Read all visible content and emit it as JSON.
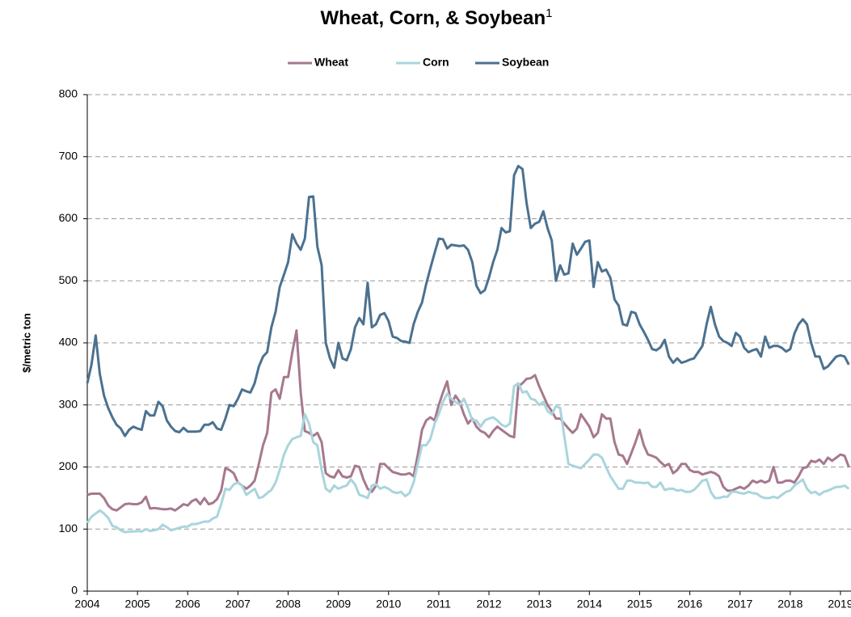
{
  "chart_data": {
    "type": "line",
    "title": "Wheat, Corn, & Soybean",
    "title_superscript": "1",
    "y_label": "$/metric ton",
    "xlim": [
      2004,
      2019.21
    ],
    "xticks": [
      2004,
      2005,
      2006,
      2007,
      2008,
      2009,
      2010,
      2011,
      2012,
      2013,
      2014,
      2015,
      2016,
      2017,
      2018,
      2019
    ],
    "ylim": [
      0,
      800
    ],
    "yticks": [
      0,
      100,
      200,
      300,
      400,
      500,
      600,
      700,
      800
    ],
    "grid": true,
    "legend": "top",
    "x": [
      2004,
      2004.083,
      2004.167,
      2004.25,
      2004.333,
      2004.417,
      2004.5,
      2004.583,
      2004.667,
      2004.75,
      2004.833,
      2004.917,
      2005,
      2005.083,
      2005.167,
      2005.25,
      2005.333,
      2005.417,
      2005.5,
      2005.583,
      2005.667,
      2005.75,
      2005.833,
      2005.917,
      2006,
      2006.083,
      2006.167,
      2006.25,
      2006.333,
      2006.417,
      2006.5,
      2006.583,
      2006.667,
      2006.75,
      2006.833,
      2006.917,
      2007,
      2007.083,
      2007.167,
      2007.25,
      2007.333,
      2007.417,
      2007.5,
      2007.583,
      2007.667,
      2007.75,
      2007.833,
      2007.917,
      2008,
      2008.083,
      2008.167,
      2008.25,
      2008.333,
      2008.417,
      2008.5,
      2008.583,
      2008.667,
      2008.75,
      2008.833,
      2008.917,
      2009,
      2009.083,
      2009.167,
      2009.25,
      2009.333,
      2009.417,
      2009.5,
      2009.583,
      2009.667,
      2009.75,
      2009.833,
      2009.917,
      2010,
      2010.083,
      2010.167,
      2010.25,
      2010.333,
      2010.417,
      2010.5,
      2010.583,
      2010.667,
      2010.75,
      2010.833,
      2010.917,
      2011,
      2011.083,
      2011.167,
      2011.25,
      2011.333,
      2011.417,
      2011.5,
      2011.583,
      2011.667,
      2011.75,
      2011.833,
      2011.917,
      2012,
      2012.083,
      2012.167,
      2012.25,
      2012.333,
      2012.417,
      2012.5,
      2012.583,
      2012.667,
      2012.75,
      2012.833,
      2012.917,
      2013,
      2013.083,
      2013.167,
      2013.25,
      2013.333,
      2013.417,
      2013.5,
      2013.583,
      2013.667,
      2013.75,
      2013.833,
      2013.917,
      2014,
      2014.083,
      2014.167,
      2014.25,
      2014.333,
      2014.417,
      2014.5,
      2014.583,
      2014.667,
      2014.75,
      2014.833,
      2014.917,
      2015,
      2015.083,
      2015.167,
      2015.25,
      2015.333,
      2015.417,
      2015.5,
      2015.583,
      2015.667,
      2015.75,
      2015.833,
      2015.917,
      2016,
      2016.083,
      2016.167,
      2016.25,
      2016.333,
      2016.417,
      2016.5,
      2016.583,
      2016.667,
      2016.75,
      2016.833,
      2016.917,
      2017,
      2017.083,
      2017.167,
      2017.25,
      2017.333,
      2017.417,
      2017.5,
      2017.583,
      2017.667,
      2017.75,
      2017.833,
      2017.917,
      2018,
      2018.083,
      2018.167,
      2018.25,
      2018.333,
      2018.417,
      2018.5,
      2018.583,
      2018.667,
      2018.75,
      2018.833,
      2018.917,
      2019,
      2019.083,
      2019.167
    ],
    "series": [
      {
        "name": "Wheat",
        "color": "#a6788e",
        "values": [
          155,
          157,
          157,
          157,
          150,
          138,
          132,
          130,
          135,
          140,
          141,
          140,
          140,
          143,
          152,
          133,
          134,
          133,
          132,
          132,
          133,
          130,
          135,
          140,
          138,
          145,
          148,
          140,
          150,
          140,
          142,
          148,
          162,
          198,
          195,
          190,
          175,
          170,
          165,
          170,
          178,
          205,
          235,
          255,
          320,
          325,
          310,
          345,
          345,
          385,
          420,
          320,
          258,
          255,
          250,
          255,
          240,
          190,
          185,
          183,
          195,
          185,
          183,
          185,
          202,
          200,
          180,
          165,
          160,
          170,
          205,
          205,
          198,
          192,
          190,
          188,
          188,
          190,
          185,
          220,
          260,
          275,
          280,
          275,
          300,
          320,
          338,
          300,
          315,
          305,
          285,
          270,
          278,
          265,
          258,
          255,
          248,
          258,
          265,
          260,
          255,
          250,
          248,
          330,
          335,
          342,
          343,
          348,
          330,
          315,
          300,
          290,
          278,
          278,
          270,
          262,
          255,
          262,
          285,
          275,
          265,
          248,
          255,
          285,
          278,
          278,
          240,
          220,
          218,
          205,
          222,
          240,
          260,
          235,
          220,
          218,
          215,
          208,
          202,
          205,
          190,
          195,
          205,
          205,
          195,
          192,
          192,
          188,
          190,
          192,
          190,
          185,
          168,
          162,
          162,
          165,
          168,
          165,
          170,
          178,
          175,
          178,
          175,
          178,
          200,
          175,
          175,
          178,
          178,
          175,
          185,
          198,
          200,
          210,
          208,
          212,
          205,
          215,
          210,
          215,
          220,
          218,
          200
        ]
      },
      {
        "name": "Corn",
        "color": "#a9d5dc",
        "values": [
          110,
          120,
          125,
          130,
          125,
          118,
          105,
          103,
          98,
          95,
          96,
          96,
          97,
          96,
          100,
          97,
          98,
          100,
          107,
          103,
          98,
          100,
          102,
          104,
          104,
          108,
          108,
          110,
          112,
          112,
          117,
          120,
          140,
          165,
          163,
          172,
          175,
          170,
          155,
          160,
          165,
          150,
          152,
          158,
          163,
          175,
          195,
          220,
          235,
          245,
          248,
          250,
          285,
          270,
          240,
          235,
          195,
          165,
          160,
          170,
          165,
          168,
          170,
          180,
          172,
          155,
          153,
          150,
          170,
          172,
          165,
          168,
          165,
          160,
          158,
          160,
          153,
          158,
          175,
          205,
          235,
          235,
          245,
          270,
          285,
          305,
          318,
          310,
          305,
          300,
          310,
          295,
          275,
          275,
          265,
          275,
          278,
          280,
          275,
          268,
          265,
          270,
          330,
          335,
          320,
          322,
          310,
          308,
          300,
          305,
          290,
          285,
          298,
          295,
          250,
          205,
          202,
          200,
          198,
          205,
          212,
          220,
          220,
          215,
          200,
          185,
          175,
          165,
          165,
          178,
          178,
          175,
          175,
          174,
          175,
          168,
          168,
          175,
          163,
          165,
          165,
          162,
          163,
          160,
          160,
          163,
          170,
          178,
          180,
          160,
          150,
          150,
          152,
          152,
          160,
          160,
          158,
          157,
          160,
          158,
          157,
          152,
          150,
          150,
          152,
          150,
          155,
          160,
          162,
          170,
          175,
          180,
          165,
          158,
          160,
          155,
          160,
          162,
          165,
          168,
          168,
          170,
          165
        ]
      },
      {
        "name": "Soybean",
        "color": "#4b7190",
        "values": [
          335,
          365,
          412,
          350,
          315,
          295,
          280,
          268,
          262,
          250,
          260,
          265,
          262,
          260,
          290,
          283,
          283,
          305,
          298,
          275,
          265,
          258,
          256,
          263,
          257,
          257,
          257,
          258,
          268,
          268,
          272,
          262,
          260,
          278,
          300,
          298,
          310,
          325,
          322,
          320,
          335,
          362,
          378,
          385,
          425,
          450,
          490,
          510,
          530,
          575,
          560,
          550,
          568,
          635,
          636,
          555,
          525,
          400,
          375,
          360,
          400,
          375,
          372,
          390,
          425,
          440,
          430,
          497,
          425,
          430,
          445,
          448,
          435,
          410,
          408,
          403,
          402,
          400,
          430,
          450,
          465,
          495,
          520,
          545,
          568,
          567,
          552,
          558,
          557,
          556,
          557,
          550,
          530,
          492,
          480,
          485,
          505,
          530,
          550,
          585,
          578,
          580,
          670,
          685,
          680,
          625,
          585,
          592,
          595,
          612,
          585,
          565,
          500,
          525,
          510,
          512,
          560,
          542,
          552,
          563,
          565,
          490,
          530,
          515,
          518,
          505,
          470,
          460,
          430,
          428,
          450,
          448,
          430,
          418,
          405,
          390,
          388,
          393,
          405,
          378,
          368,
          375,
          368,
          370,
          373,
          375,
          385,
          395,
          430,
          458,
          430,
          410,
          403,
          400,
          395,
          416,
          410,
          392,
          385,
          388,
          390,
          378,
          410,
          392,
          395,
          395,
          392,
          386,
          390,
          415,
          430,
          438,
          430,
          400,
          378,
          378,
          358,
          362,
          370,
          378,
          380,
          378,
          365
        ]
      }
    ]
  }
}
